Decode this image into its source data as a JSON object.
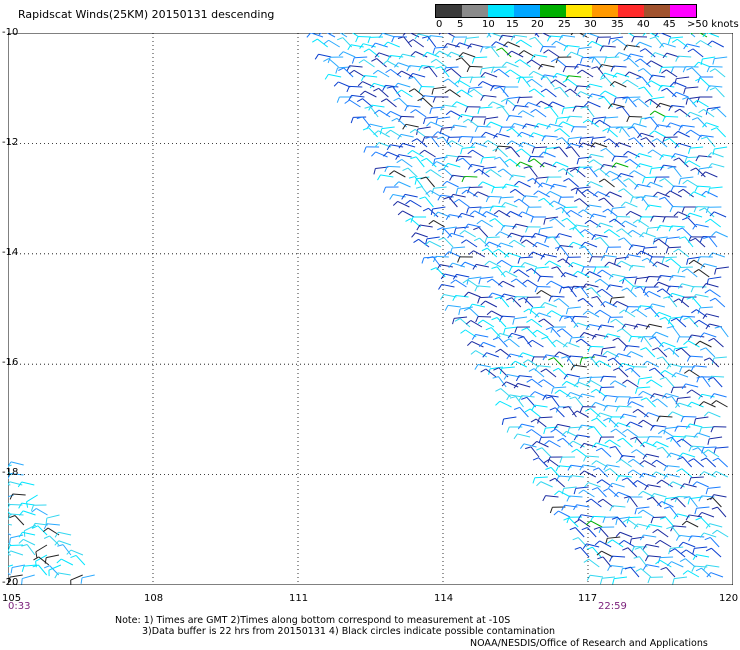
{
  "header": {
    "title": "Rapidscat Winds(25KM) 20150131 descending"
  },
  "legend": {
    "labels": [
      "0",
      "5",
      "10",
      "15",
      "20",
      "25",
      "30",
      "35",
      "40",
      "45",
      ">50 knots"
    ],
    "colors": [
      "#3a3a3a",
      "#8a8a8a",
      "#00e5ff",
      "#00a6ff",
      "#00b000",
      "#ffe600",
      "#ff9900",
      "#ff2a2a",
      "#a0522d",
      "#ff00ff",
      "#4b0082"
    ]
  },
  "map": {
    "lat_labels": [
      "-10",
      "-12",
      "-14",
      "-16",
      "-18",
      "-20"
    ],
    "lon_labels": [
      "105",
      "108",
      "111",
      "114",
      "117",
      "120"
    ],
    "time_left": "0:33",
    "time_right": "22:59",
    "grid": true,
    "extent": {
      "lon": [
        105,
        120
      ],
      "lat": [
        -20,
        -10
      ]
    }
  },
  "footer": {
    "note_line1": "Note: 1) Times are GMT 2)Times along bottom correspond to measurement at -10S",
    "note_line2": "3)Data buffer is 22 hrs from 20150131 4) Black circles indicate possible contamination",
    "credit": "NOAA/NESDIS/Office of Research and Applications"
  }
}
